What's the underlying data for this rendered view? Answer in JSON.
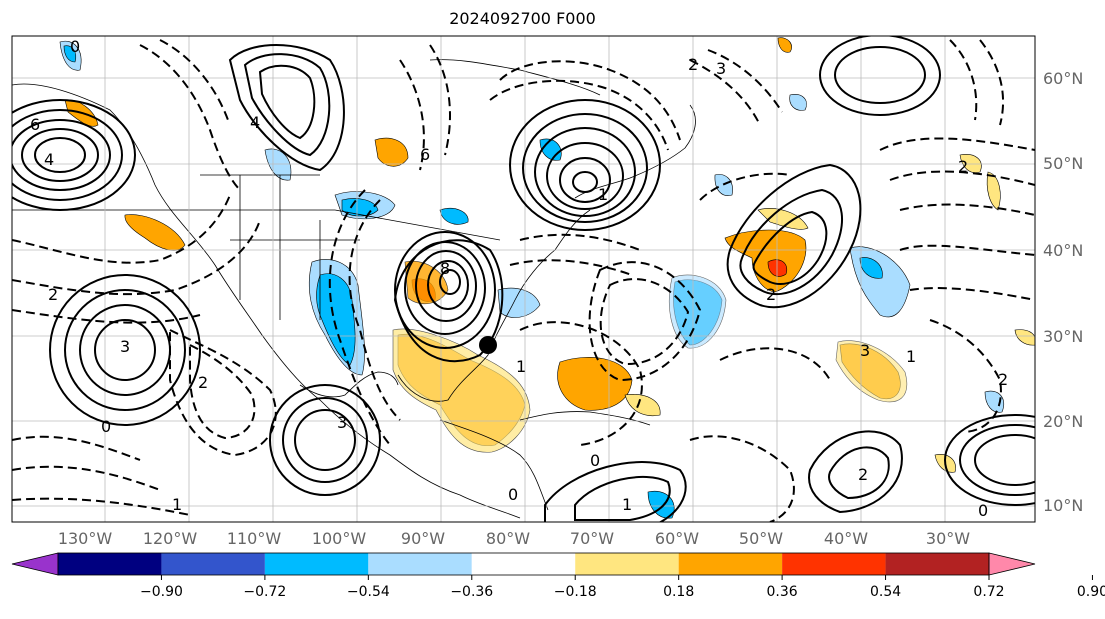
{
  "title": "2024092700 F000",
  "lon_labels": [
    "130°W",
    "120°W",
    "110°W",
    "100°W",
    "90°W",
    "80°W",
    "70°W",
    "60°W",
    "50°W",
    "40°W",
    "30°W"
  ],
  "lat_labels": [
    "60°N",
    "50°N",
    "40°N",
    "30°N",
    "20°N",
    "10°N"
  ],
  "colorbar": {
    "colors": [
      "#9933cc",
      "#000080",
      "#3355cc",
      "#00bbff",
      "#aaddff",
      "#ffffff",
      "#ffe680",
      "#ffa500",
      "#ff3300",
      "#b22222",
      "#ff88aa"
    ],
    "tick_labels": [
      "−0.90",
      "−0.72",
      "−0.54",
      "−0.36",
      "−0.18",
      "0.18",
      "0.36",
      "0.54",
      "0.72",
      "0.90"
    ]
  },
  "contour_labels": [
    "0",
    "2",
    "3",
    "4",
    "6",
    "8",
    "1",
    "2",
    "2",
    "3",
    "0",
    "1",
    "2",
    "3",
    "0",
    "1",
    "2",
    "6",
    "4",
    "2",
    "1",
    "0",
    "3",
    "2",
    "1",
    "0"
  ]
}
